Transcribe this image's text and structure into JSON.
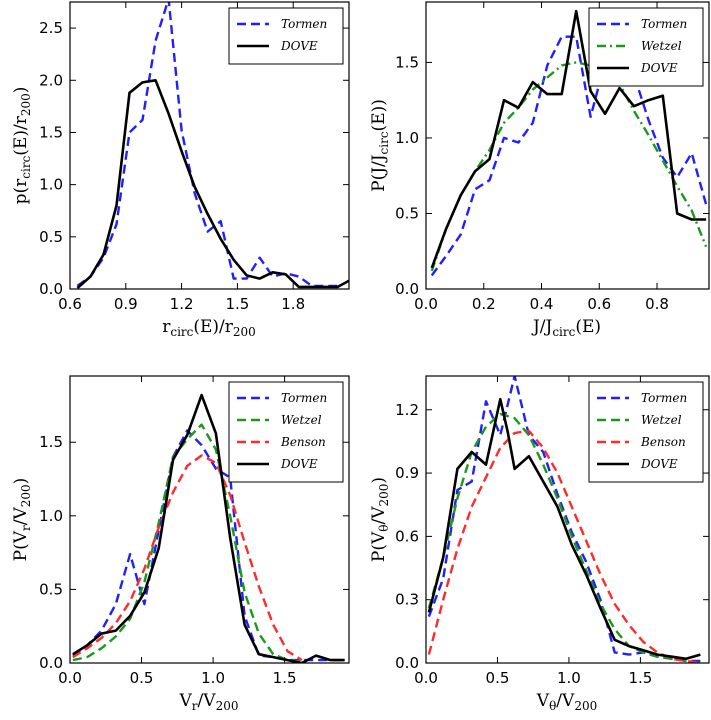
{
  "colors": {
    "Tormen": "#1f1fff",
    "Wetzel": "#1a991a",
    "Benson": "#ff2a2a",
    "DOVE": "#000000"
  },
  "chart_data": [
    {
      "type": "line",
      "id": "rcirc",
      "xlabel": "r_circ(E)/r_200",
      "ylabel": "p(r_circ(E)/r_200)",
      "xlim": [
        0.6,
        2.1
      ],
      "ylim": [
        0,
        2.75
      ],
      "xticks": [
        0.6,
        0.9,
        1.2,
        1.5,
        1.8
      ],
      "xtick_labels": [
        "0.6",
        "0.9",
        "1.2",
        "1.5",
        "1.8"
      ],
      "yticks": [
        0,
        0.5,
        1.0,
        1.5,
        2.0,
        2.5
      ],
      "ytick_labels": [
        "0.0",
        "0.5",
        "1.0",
        "1.5",
        "2.0",
        "2.5"
      ],
      "legend": [
        "Tormen",
        "DOVE"
      ],
      "legend_position": "top-right",
      "series": [
        {
          "name": "Tormen",
          "style": "dashed",
          "x": [
            0.64,
            0.71,
            0.78,
            0.85,
            0.92,
            0.99,
            1.06,
            1.13,
            1.2,
            1.27,
            1.34,
            1.41,
            1.48,
            1.55,
            1.62,
            1.69,
            1.76,
            1.83,
            1.9,
            1.97,
            2.04
          ],
          "y": [
            0.03,
            0.12,
            0.3,
            0.62,
            1.5,
            1.62,
            2.38,
            2.78,
            1.52,
            0.92,
            0.55,
            0.65,
            0.1,
            0.1,
            0.3,
            0.12,
            0.15,
            0.12,
            0.03,
            0.03,
            0.03
          ]
        },
        {
          "name": "DOVE",
          "style": "solid",
          "x": [
            0.64,
            0.71,
            0.78,
            0.85,
            0.92,
            0.99,
            1.06,
            1.13,
            1.2,
            1.27,
            1.34,
            1.41,
            1.48,
            1.55,
            1.62,
            1.69,
            1.76,
            1.83,
            1.9,
            1.97,
            2.04,
            2.1
          ],
          "y": [
            0.01,
            0.12,
            0.33,
            0.8,
            1.88,
            1.98,
            2.0,
            1.68,
            1.32,
            0.98,
            0.72,
            0.48,
            0.28,
            0.13,
            0.1,
            0.16,
            0.14,
            0.02,
            0.02,
            0.02,
            0.02,
            0.08
          ]
        }
      ]
    },
    {
      "type": "line",
      "id": "J",
      "xlabel": "J/J_circ(E)",
      "ylabel": "P(J/J_circ(E))",
      "xlim": [
        0,
        0.98
      ],
      "ylim": [
        0,
        1.9
      ],
      "xticks": [
        0,
        0.2,
        0.4,
        0.6,
        0.8
      ],
      "xtick_labels": [
        "0.0",
        "0.2",
        "0.4",
        "0.6",
        "0.8"
      ],
      "yticks": [
        0,
        0.5,
        1.0,
        1.5
      ],
      "ytick_labels": [
        "0.0",
        "0.5",
        "1.0",
        "1.5"
      ],
      "legend": [
        "Tormen",
        "Wetzel",
        "DOVE"
      ],
      "legend_position": "top-right",
      "series": [
        {
          "name": "Tormen",
          "style": "dashed",
          "x": [
            0.02,
            0.07,
            0.12,
            0.17,
            0.22,
            0.27,
            0.32,
            0.37,
            0.42,
            0.47,
            0.52,
            0.57,
            0.62,
            0.67,
            0.72,
            0.77,
            0.82,
            0.87,
            0.92,
            0.97
          ],
          "y": [
            0.09,
            0.22,
            0.36,
            0.66,
            0.72,
            1.0,
            0.97,
            1.1,
            1.48,
            1.67,
            1.67,
            1.14,
            1.5,
            1.46,
            1.42,
            1.12,
            0.87,
            0.74,
            0.9,
            0.56
          ]
        },
        {
          "name": "Wetzel",
          "style": "dashdot",
          "x": [
            0.02,
            0.07,
            0.12,
            0.17,
            0.22,
            0.27,
            0.32,
            0.37,
            0.42,
            0.47,
            0.52,
            0.57,
            0.62,
            0.67,
            0.72,
            0.77,
            0.82,
            0.87,
            0.92,
            0.97
          ],
          "y": [
            0.12,
            0.4,
            0.62,
            0.78,
            0.92,
            1.1,
            1.2,
            1.32,
            1.4,
            1.48,
            1.5,
            1.48,
            1.42,
            1.36,
            1.18,
            1.02,
            0.85,
            0.68,
            0.52,
            0.28
          ]
        },
        {
          "name": "DOVE",
          "style": "solid",
          "x": [
            0.02,
            0.07,
            0.12,
            0.17,
            0.22,
            0.27,
            0.32,
            0.37,
            0.42,
            0.47,
            0.52,
            0.57,
            0.62,
            0.67,
            0.72,
            0.77,
            0.82,
            0.87,
            0.92,
            0.97
          ],
          "y": [
            0.14,
            0.4,
            0.62,
            0.78,
            0.86,
            1.25,
            1.2,
            1.37,
            1.29,
            1.29,
            1.84,
            1.31,
            1.16,
            1.33,
            1.21,
            1.25,
            1.28,
            0.5,
            0.46,
            0.46
          ]
        }
      ]
    },
    {
      "type": "line",
      "id": "Vr",
      "xlabel": "V_r/V_200",
      "ylabel": "P(V_r/V_200)",
      "xlim": [
        0,
        1.95
      ],
      "ylim": [
        0,
        1.95
      ],
      "xticks": [
        0,
        0.5,
        1.0,
        1.5
      ],
      "xtick_labels": [
        "0.0",
        "0.5",
        "1.0",
        "1.5"
      ],
      "yticks": [
        0,
        0.5,
        1.0,
        1.5
      ],
      "ytick_labels": [
        "0.0",
        "0.5",
        "1.0",
        "1.5"
      ],
      "legend": [
        "Tormen",
        "Wetzel",
        "Benson",
        "DOVE"
      ],
      "legend_position": "top-right",
      "series": [
        {
          "name": "Tormen",
          "style": "dashed",
          "x": [
            0.02,
            0.12,
            0.22,
            0.32,
            0.42,
            0.52,
            0.62,
            0.72,
            0.82,
            0.92,
            1.02,
            1.12,
            1.22,
            1.32,
            1.42,
            1.52,
            1.62,
            1.72,
            1.82,
            1.92
          ],
          "y": [
            0.05,
            0.12,
            0.22,
            0.4,
            0.74,
            0.4,
            0.9,
            1.4,
            1.58,
            1.48,
            1.32,
            1.26,
            0.32,
            0.05,
            0.04,
            0.02,
            0.02,
            0.02,
            0.02,
            0.02
          ]
        },
        {
          "name": "Wetzel",
          "style": "dashed",
          "x": [
            0.02,
            0.12,
            0.22,
            0.32,
            0.42,
            0.52,
            0.62,
            0.72,
            0.82,
            0.92,
            1.02,
            1.12,
            1.22,
            1.32,
            1.42,
            1.52,
            1.62
          ],
          "y": [
            0.02,
            0.04,
            0.1,
            0.18,
            0.3,
            0.55,
            0.95,
            1.4,
            1.52,
            1.62,
            1.45,
            1.0,
            0.48,
            0.2,
            0.06,
            0.02,
            0.01
          ]
        },
        {
          "name": "Benson",
          "style": "dashed",
          "x": [
            0.02,
            0.12,
            0.22,
            0.32,
            0.42,
            0.52,
            0.62,
            0.72,
            0.82,
            0.92,
            1.02,
            1.12,
            1.22,
            1.32,
            1.42,
            1.52,
            1.62
          ],
          "y": [
            0.04,
            0.1,
            0.17,
            0.27,
            0.42,
            0.64,
            0.92,
            1.16,
            1.34,
            1.41,
            1.36,
            1.14,
            0.82,
            0.52,
            0.26,
            0.08,
            0.02
          ]
        },
        {
          "name": "DOVE",
          "style": "solid",
          "x": [
            0.02,
            0.12,
            0.22,
            0.32,
            0.42,
            0.52,
            0.62,
            0.72,
            0.82,
            0.92,
            1.02,
            1.12,
            1.22,
            1.32,
            1.42,
            1.52,
            1.62,
            1.72,
            1.82,
            1.92
          ],
          "y": [
            0.06,
            0.12,
            0.2,
            0.22,
            0.32,
            0.48,
            0.78,
            1.38,
            1.55,
            1.82,
            1.56,
            0.85,
            0.26,
            0.06,
            0.04,
            0.02,
            0.0,
            0.05,
            0.02,
            0.02
          ]
        }
      ]
    },
    {
      "type": "line",
      "id": "Vtheta",
      "xlabel": "V_θ/V_200",
      "ylabel": "P(V_θ/V_200)",
      "xlim": [
        0,
        1.98
      ],
      "ylim": [
        0,
        1.36
      ],
      "xticks": [
        0,
        0.5,
        1.0,
        1.5
      ],
      "xtick_labels": [
        "0.0",
        "0.5",
        "1.0",
        "1.5"
      ],
      "yticks": [
        0,
        0.3,
        0.6,
        0.9,
        1.2
      ],
      "ytick_labels": [
        "0.0",
        "0.3",
        "0.6",
        "0.9",
        "1.2"
      ],
      "legend": [
        "Tormen",
        "Wetzel",
        "Benson",
        "DOVE"
      ],
      "legend_position": "top-right",
      "series": [
        {
          "name": "Tormen",
          "style": "dashed",
          "x": [
            0.02,
            0.12,
            0.22,
            0.32,
            0.42,
            0.52,
            0.62,
            0.72,
            0.82,
            0.92,
            1.02,
            1.12,
            1.22,
            1.32,
            1.42,
            1.52,
            1.62,
            1.72,
            1.82,
            1.92
          ],
          "y": [
            0.22,
            0.4,
            0.82,
            0.86,
            1.24,
            1.08,
            1.36,
            1.08,
            1.0,
            0.8,
            0.62,
            0.48,
            0.3,
            0.05,
            0.04,
            0.05,
            0.03,
            0.02,
            0.01,
            0.01
          ]
        },
        {
          "name": "Wetzel",
          "style": "dashed",
          "x": [
            0.02,
            0.12,
            0.22,
            0.32,
            0.42,
            0.52,
            0.62,
            0.72,
            0.82,
            0.92,
            1.02,
            1.12,
            1.22,
            1.32,
            1.42,
            1.52,
            1.62,
            1.72,
            1.82,
            1.92
          ],
          "y": [
            0.26,
            0.5,
            0.78,
            1.0,
            1.12,
            1.18,
            1.16,
            1.08,
            0.94,
            0.78,
            0.6,
            0.44,
            0.28,
            0.16,
            0.08,
            0.05,
            0.03,
            0.02,
            0.01,
            0.0
          ]
        },
        {
          "name": "Benson",
          "style": "dashed",
          "x": [
            0.02,
            0.12,
            0.22,
            0.32,
            0.42,
            0.52,
            0.62,
            0.72,
            0.82,
            0.92,
            1.02,
            1.12,
            1.22,
            1.32,
            1.42,
            1.52,
            1.62,
            1.72,
            1.82,
            1.92
          ],
          "y": [
            0.04,
            0.3,
            0.54,
            0.74,
            0.88,
            1.02,
            1.09,
            1.1,
            1.02,
            0.9,
            0.74,
            0.58,
            0.42,
            0.28,
            0.18,
            0.1,
            0.05,
            0.02,
            0.01,
            0.0
          ]
        },
        {
          "name": "DOVE",
          "style": "solid",
          "x": [
            0.02,
            0.12,
            0.22,
            0.32,
            0.42,
            0.52,
            0.57,
            0.62,
            0.72,
            0.82,
            0.92,
            1.02,
            1.12,
            1.22,
            1.32,
            1.42,
            1.52,
            1.62,
            1.72,
            1.82,
            1.92
          ],
          "y": [
            0.24,
            0.5,
            0.92,
            1.0,
            0.94,
            1.25,
            1.1,
            0.92,
            0.98,
            0.86,
            0.74,
            0.56,
            0.42,
            0.26,
            0.11,
            0.08,
            0.06,
            0.04,
            0.03,
            0.02,
            0.04
          ]
        }
      ]
    }
  ]
}
